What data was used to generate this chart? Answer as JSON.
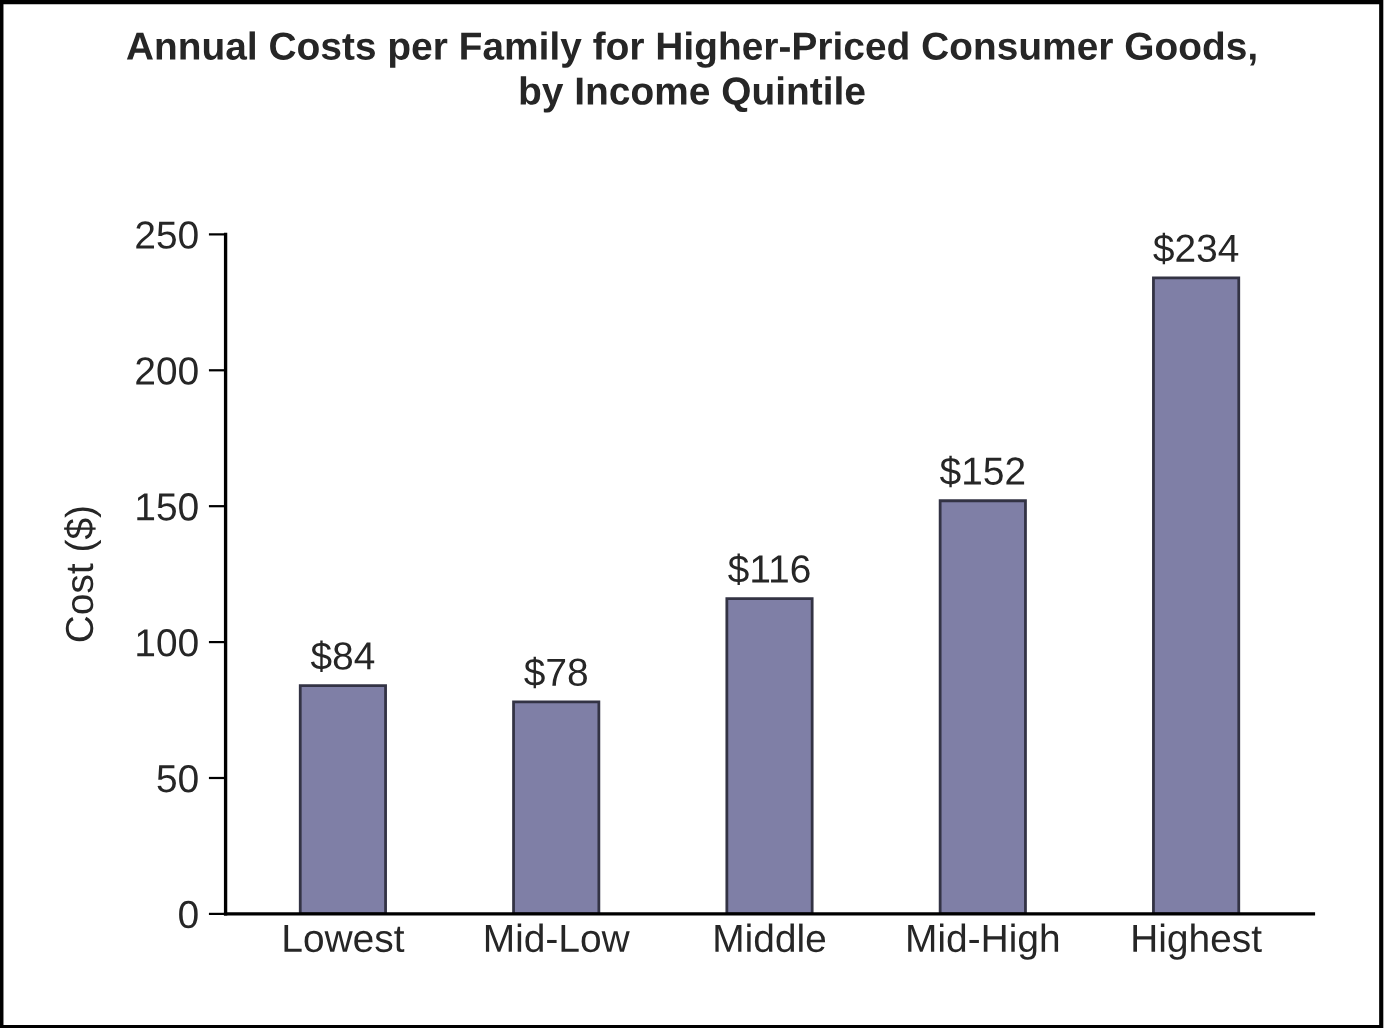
{
  "chart_data": {
    "type": "bar",
    "title": "Annual Costs per Family for Higher-Priced Consumer Goods,\nby Income Quintile",
    "ylabel": "Cost ($)",
    "categories": [
      "Lowest",
      "Mid-Low",
      "Middle",
      "Mid-High",
      "Highest"
    ],
    "values": [
      84,
      78,
      116,
      152,
      234
    ],
    "value_labels": [
      "$84",
      "$78",
      "$116",
      "$152",
      "$234"
    ],
    "color": "#7f7fa6",
    "ylim": [
      0,
      250
    ],
    "yticks": [
      0,
      50,
      100,
      150,
      200,
      250
    ],
    "grid": false,
    "legend": false
  }
}
